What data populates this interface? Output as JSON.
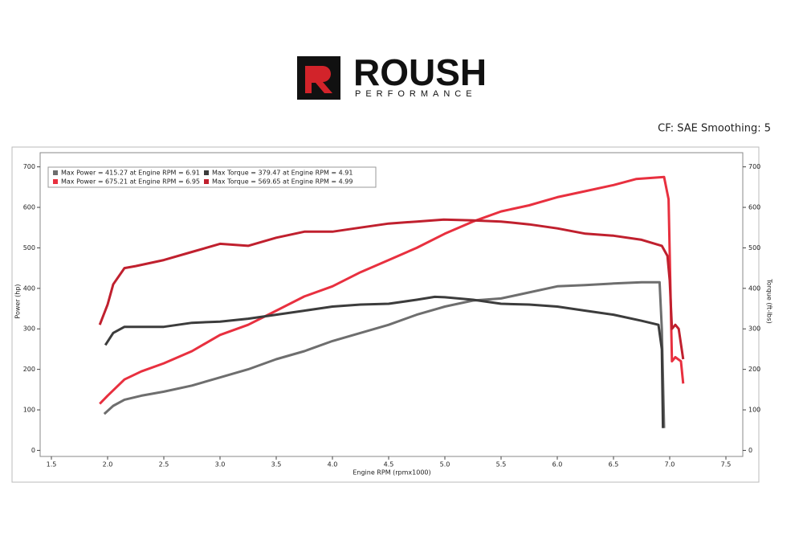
{
  "header": {
    "brand": "ROUSH",
    "tagline": "PERFORMANCE",
    "note": "CF: SAE Smoothing: 5"
  },
  "chart_data": {
    "type": "line",
    "x_label": "Engine RPM (rpmx1000)",
    "y_label": "Power (hp)",
    "y2_label": "Torque (ft-lbs)",
    "xlim": [
      1.4,
      7.65
    ],
    "ylim": [
      -15,
      735
    ],
    "y2lim": [
      -15,
      735
    ],
    "xticks": [
      1.5,
      {
        "value": 2,
        "label": "2.0"
      },
      2.5,
      {
        "value": 3,
        "label": "3.0"
      },
      3.5,
      {
        "value": 4,
        "label": "4.0"
      },
      4.5,
      {
        "value": 5,
        "label": "5.0"
      },
      5.5,
      {
        "value": 6,
        "label": "6.0"
      },
      6.5,
      {
        "value": 7,
        "label": "7.0"
      },
      7.5
    ],
    "yticks": [
      0,
      100,
      200,
      300,
      400,
      500,
      600,
      700
    ],
    "y2ticks": [
      0,
      100,
      200,
      300,
      400,
      500,
      600,
      700
    ],
    "series": [
      {
        "name": "Max Power = 415.27 at Engine RPM = 6.91",
        "color": "#6e6e6e",
        "x": [
          1.97,
          2.05,
          2.15,
          2.3,
          2.5,
          2.75,
          3.0,
          3.25,
          3.5,
          3.75,
          4.0,
          4.25,
          4.5,
          4.75,
          5.0,
          5.25,
          5.5,
          5.75,
          6.0,
          6.25,
          6.5,
          6.75,
          6.91,
          6.93,
          6.95
        ],
        "values": [
          90,
          110,
          125,
          135,
          145,
          160,
          180,
          200,
          225,
          245,
          270,
          290,
          310,
          335,
          355,
          370,
          375,
          390,
          405,
          408,
          412,
          415,
          415,
          300,
          55
        ]
      },
      {
        "name": "Max Power = 675.21 at Engine RPM = 6.95",
        "color": "#e8303f",
        "x": [
          1.93,
          2.0,
          2.15,
          2.3,
          2.5,
          2.75,
          3.0,
          3.25,
          3.5,
          3.75,
          4.0,
          4.25,
          4.5,
          4.75,
          5.0,
          5.25,
          5.5,
          5.75,
          6.0,
          6.25,
          6.5,
          6.7,
          6.95,
          6.99,
          7.02,
          7.05,
          7.1,
          7.12
        ],
        "values": [
          115,
          135,
          175,
          195,
          215,
          245,
          285,
          310,
          345,
          380,
          405,
          440,
          470,
          500,
          535,
          565,
          590,
          605,
          625,
          640,
          655,
          670,
          675,
          620,
          220,
          230,
          220,
          165
        ]
      },
      {
        "name": "Max Torque = 379.47 at Engine RPM = 4.91",
        "color": "#3c3c3c",
        "axis": "y2",
        "x": [
          1.98,
          2.05,
          2.15,
          2.3,
          2.5,
          2.75,
          3.0,
          3.25,
          3.5,
          3.75,
          4.0,
          4.25,
          4.5,
          4.75,
          4.91,
          5.0,
          5.25,
          5.5,
          5.75,
          6.0,
          6.25,
          6.5,
          6.75,
          6.9,
          6.93,
          6.94
        ],
        "values": [
          260,
          290,
          305,
          305,
          305,
          315,
          318,
          325,
          335,
          345,
          355,
          360,
          362,
          372,
          379,
          378,
          372,
          362,
          360,
          355,
          345,
          335,
          320,
          310,
          250,
          55
        ]
      },
      {
        "name": "Max Torque = 569.65 at Engine RPM = 4.99",
        "color": "#c0202e",
        "axis": "y2",
        "x": [
          1.93,
          2.0,
          2.05,
          2.15,
          2.25,
          2.5,
          2.75,
          3.0,
          3.25,
          3.5,
          3.75,
          4.0,
          4.25,
          4.5,
          4.75,
          4.99,
          5.25,
          5.5,
          5.75,
          6.0,
          6.25,
          6.5,
          6.75,
          6.93,
          6.98,
          7.0,
          7.02,
          7.05,
          7.08,
          7.12
        ],
        "values": [
          310,
          360,
          410,
          450,
          455,
          470,
          490,
          510,
          505,
          525,
          540,
          540,
          550,
          560,
          565,
          570,
          568,
          565,
          558,
          548,
          535,
          530,
          520,
          505,
          480,
          420,
          300,
          310,
          300,
          225
        ]
      }
    ]
  }
}
